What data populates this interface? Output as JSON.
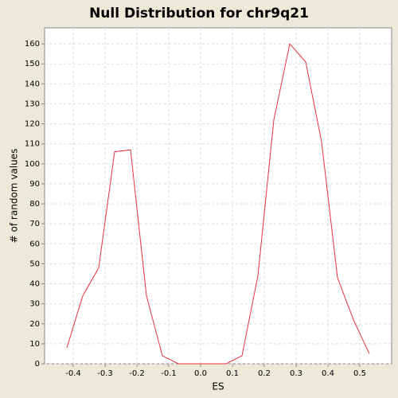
{
  "chart_data": {
    "type": "line",
    "title": "Null Distribution for chr9q21",
    "x_label": "ES",
    "y_label": "# of random values",
    "x": [
      -0.42,
      -0.37,
      -0.32,
      -0.27,
      -0.22,
      -0.17,
      -0.12,
      -0.07,
      -0.02,
      0.03,
      0.08,
      0.13,
      0.18,
      0.23,
      0.28,
      0.33,
      0.38,
      0.43,
      0.48,
      0.53
    ],
    "series": [
      {
        "color": "#e8323c",
        "values": [
          8,
          34,
          48,
          106,
          107,
          34,
          4,
          0,
          0,
          0,
          0,
          4,
          44,
          122,
          160,
          151,
          111,
          43,
          22,
          5
        ]
      }
    ],
    "xlim": [
      -0.49,
      0.6
    ],
    "ylim": [
      0,
      168
    ],
    "xticks": [
      -0.4,
      -0.3,
      -0.2,
      -0.1,
      {
        "value": 0,
        "label": "0.0"
      },
      0.1,
      0.2,
      0.3,
      0.4,
      0.5
    ],
    "yticks": [
      0,
      10,
      20,
      30,
      40,
      50,
      60,
      70,
      80,
      90,
      100,
      110,
      120,
      130,
      140,
      150,
      160
    ],
    "grid": true
  }
}
